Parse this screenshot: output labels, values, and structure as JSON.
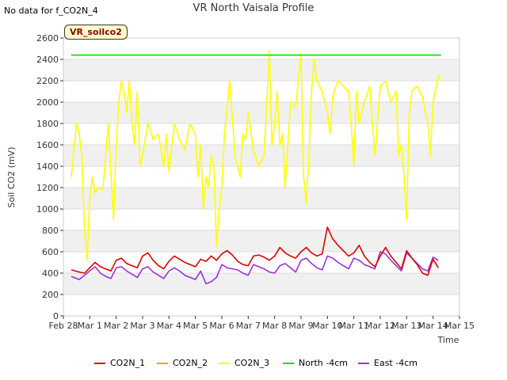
{
  "header": {
    "no_data_note": "No data for f_CO2N_4",
    "title": "VR North Vaisala Profile",
    "site_badge": "VR_soilco2"
  },
  "colors": {
    "CO2N_1": "#dd0000",
    "CO2N_2": "#ff9900",
    "CO2N_3": "#ffff00",
    "North -4cm": "#00dd00",
    "East -4cm": "#9933dd",
    "band": "#f0f0f0",
    "grid": "#dddddd"
  },
  "chart_data": {
    "type": "line",
    "title": "VR North Vaisala Profile",
    "xlabel": "Time",
    "ylabel": "Soil CO2 (mV)",
    "ylim": [
      0,
      2600
    ],
    "yticks": [
      0,
      200,
      400,
      600,
      800,
      1000,
      1200,
      1400,
      1600,
      1800,
      2000,
      2200,
      2400,
      2600
    ],
    "xlim": [
      0,
      15
    ],
    "xticks": [
      {
        "value": 0,
        "label": "Feb 28"
      },
      {
        "value": 1,
        "label": "Mar 1"
      },
      {
        "value": 2,
        "label": "Mar 2"
      },
      {
        "value": 3,
        "label": "Mar 3"
      },
      {
        "value": 4,
        "label": "Mar 4"
      },
      {
        "value": 5,
        "label": "Mar 5"
      },
      {
        "value": 6,
        "label": "Mar 6"
      },
      {
        "value": 7,
        "label": "Mar 7"
      },
      {
        "value": 8,
        "label": "Mar 8"
      },
      {
        "value": 9,
        "label": "Mar 9"
      },
      {
        "value": 10,
        "label": "Mar 10"
      },
      {
        "value": 11,
        "label": "Mar 11"
      },
      {
        "value": 12,
        "label": "Mar 12"
      },
      {
        "value": 13,
        "label": "Mar 13"
      },
      {
        "value": 14,
        "label": "Mar 14"
      },
      {
        "value": 15,
        "label": "Mar 15"
      }
    ],
    "grid": true,
    "legend_position": "bottom",
    "series": [
      {
        "name": "CO2N_1",
        "x": [
          0.3,
          0.6,
          0.8,
          1.0,
          1.2,
          1.4,
          1.6,
          1.8,
          2.0,
          2.2,
          2.4,
          2.6,
          2.8,
          3.0,
          3.2,
          3.4,
          3.6,
          3.8,
          4.0,
          4.2,
          4.4,
          4.6,
          4.8,
          5.0,
          5.2,
          5.4,
          5.6,
          5.8,
          6.0,
          6.2,
          6.4,
          6.6,
          6.8,
          7.0,
          7.2,
          7.4,
          7.6,
          7.8,
          8.0,
          8.2,
          8.4,
          8.6,
          8.8,
          9.0,
          9.2,
          9.4,
          9.6,
          9.8,
          10.0,
          10.2,
          10.4,
          10.6,
          10.8,
          11.0,
          11.2,
          11.4,
          11.6,
          11.8,
          12.0,
          12.2,
          12.4,
          12.6,
          12.8,
          13.0,
          13.2,
          13.4,
          13.6,
          13.8,
          14.0,
          14.2
        ],
        "values": [
          430,
          410,
          400,
          450,
          500,
          460,
          440,
          420,
          520,
          540,
          490,
          470,
          450,
          560,
          590,
          520,
          470,
          440,
          510,
          560,
          530,
          500,
          480,
          460,
          530,
          510,
          560,
          520,
          580,
          610,
          570,
          510,
          480,
          470,
          560,
          570,
          550,
          520,
          560,
          640,
          590,
          560,
          540,
          600,
          640,
          590,
          560,
          580,
          830,
          720,
          660,
          610,
          560,
          590,
          660,
          560,
          500,
          460,
          560,
          640,
          560,
          500,
          440,
          610,
          540,
          480,
          400,
          380,
          530,
          450
        ]
      },
      {
        "name": "CO2N_2",
        "x": [],
        "values": []
      },
      {
        "name": "CO2N_3",
        "x": [
          0.3,
          0.4,
          0.5,
          0.6,
          0.7,
          0.8,
          0.9,
          1.0,
          1.1,
          1.2,
          1.3,
          1.5,
          1.7,
          1.9,
          2.0,
          2.1,
          2.2,
          2.3,
          2.4,
          2.5,
          2.6,
          2.7,
          2.8,
          2.9,
          3.0,
          3.2,
          3.4,
          3.6,
          3.8,
          3.9,
          4.0,
          4.2,
          4.4,
          4.6,
          4.8,
          5.0,
          5.1,
          5.2,
          5.3,
          5.4,
          5.5,
          5.6,
          5.7,
          5.8,
          5.9,
          6.0,
          6.1,
          6.3,
          6.5,
          6.7,
          6.8,
          6.9,
          7.0,
          7.2,
          7.4,
          7.6,
          7.8,
          7.9,
          8.0,
          8.1,
          8.2,
          8.3,
          8.4,
          8.6,
          8.8,
          9.0,
          9.1,
          9.2,
          9.3,
          9.4,
          9.5,
          9.6,
          9.8,
          10.0,
          10.1,
          10.2,
          10.4,
          10.6,
          10.8,
          10.9,
          11.0,
          11.1,
          11.2,
          11.4,
          11.6,
          11.8,
          12.0,
          12.2,
          12.4,
          12.6,
          12.7,
          12.8,
          12.9,
          13.0,
          13.1,
          13.2,
          13.4,
          13.6,
          13.8,
          13.9,
          14.0,
          14.2,
          14.3
        ],
        "values": [
          1300,
          1550,
          1800,
          1700,
          1500,
          800,
          520,
          1100,
          1300,
          1150,
          1200,
          1180,
          1800,
          900,
          1600,
          2000,
          2200,
          2100,
          1900,
          2200,
          1800,
          1600,
          2100,
          1400,
          1500,
          1800,
          1650,
          1700,
          1400,
          1700,
          1350,
          1800,
          1650,
          1550,
          1800,
          1700,
          1300,
          1600,
          1000,
          1300,
          1200,
          1500,
          1400,
          650,
          1000,
          1200,
          1700,
          2200,
          1500,
          1300,
          1700,
          1650,
          1900,
          1550,
          1400,
          1500,
          2480,
          1600,
          1800,
          2100,
          1600,
          1700,
          1200,
          2000,
          1950,
          2450,
          1300,
          1050,
          1500,
          2100,
          2400,
          2200,
          2100,
          1900,
          1700,
          2050,
          2200,
          2150,
          2100,
          1800,
          1400,
          2100,
          1800,
          2000,
          2150,
          1500,
          2150,
          2200,
          2000,
          2100,
          1500,
          1600,
          1300,
          900,
          1900,
          2100,
          2150,
          2050,
          1800,
          1500,
          2000,
          2250,
          2200
        ]
      },
      {
        "name": "North -4cm",
        "x": [
          0.3,
          14.3
        ],
        "values": [
          2440,
          2440
        ]
      },
      {
        "name": "East -4cm",
        "x": [
          0.3,
          0.6,
          0.8,
          1.0,
          1.2,
          1.4,
          1.6,
          1.8,
          2.0,
          2.2,
          2.4,
          2.6,
          2.8,
          3.0,
          3.2,
          3.4,
          3.6,
          3.8,
          4.0,
          4.2,
          4.4,
          4.6,
          4.8,
          5.0,
          5.2,
          5.4,
          5.6,
          5.8,
          6.0,
          6.2,
          6.4,
          6.6,
          6.8,
          7.0,
          7.2,
          7.4,
          7.6,
          7.8,
          8.0,
          8.2,
          8.4,
          8.6,
          8.8,
          9.0,
          9.2,
          9.4,
          9.6,
          9.8,
          10.0,
          10.2,
          10.4,
          10.6,
          10.8,
          11.0,
          11.2,
          11.4,
          11.6,
          11.8,
          12.0,
          12.2,
          12.4,
          12.6,
          12.8,
          13.0,
          13.2,
          13.4,
          13.6,
          13.8,
          14.0,
          14.2
        ],
        "values": [
          370,
          340,
          380,
          420,
          460,
          400,
          370,
          350,
          450,
          460,
          420,
          390,
          360,
          440,
          460,
          410,
          380,
          350,
          420,
          450,
          420,
          380,
          360,
          340,
          420,
          300,
          320,
          360,
          480,
          450,
          440,
          430,
          400,
          380,
          480,
          460,
          440,
          410,
          400,
          470,
          490,
          450,
          410,
          520,
          540,
          490,
          450,
          430,
          560,
          540,
          500,
          470,
          440,
          540,
          520,
          480,
          460,
          440,
          600,
          580,
          520,
          470,
          420,
          590,
          540,
          490,
          440,
          420,
          550,
          520
        ]
      }
    ]
  }
}
